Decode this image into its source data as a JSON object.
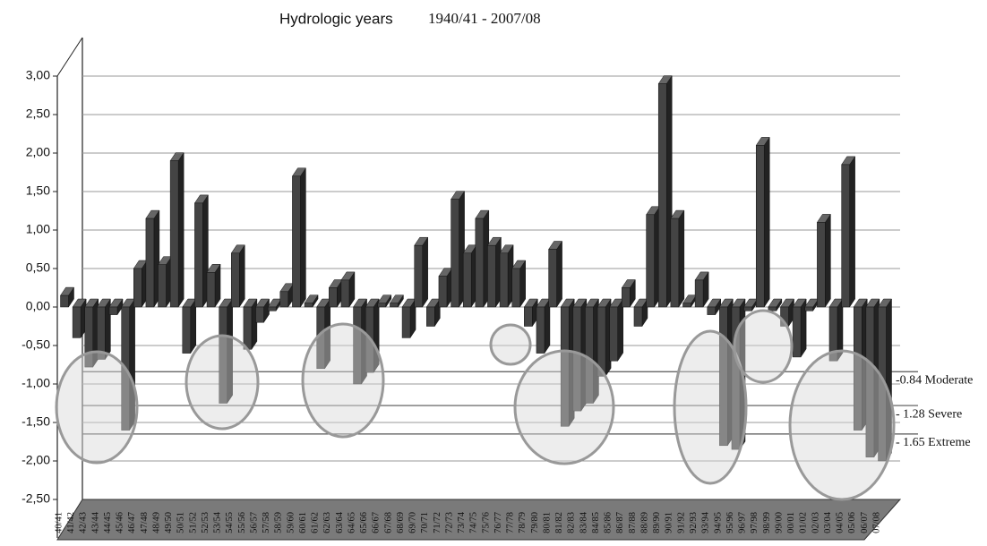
{
  "chart_data": {
    "type": "bar3d",
    "title": "Hydrologic years",
    "subtitle": "1940/41 - 2007/08",
    "categories": [
      "40/41",
      "41/42",
      "42/43",
      "43/44",
      "44/45",
      "45/46",
      "46/47",
      "47/48",
      "48/49",
      "49/50",
      "50/51",
      "51/52",
      "52/53",
      "53/54",
      "54/55",
      "55/56",
      "56/57",
      "57/58",
      "58/59",
      "59/60",
      "60/61",
      "61/62",
      "62/63",
      "63/64",
      "64/65",
      "65/66",
      "66/67",
      "67/68",
      "68/69",
      "69/70",
      "70/71",
      "71/72",
      "72/73",
      "73/74",
      "74/75",
      "75/76",
      "76/77",
      "77/78",
      "78/79",
      "79/80",
      "80/81",
      "81/82",
      "82/83",
      "83/84",
      "84/85",
      "85/86",
      "86/87",
      "87/88",
      "88/89",
      "89/90",
      "90/91",
      "91/92",
      "92/93",
      "93/94",
      "94/95",
      "95/96",
      "96/97",
      "97/98",
      "98/99",
      "99/00",
      "00/01",
      "01/02",
      "02/03",
      "03/04",
      "04/05",
      "05/06",
      "06/07",
      "07/08"
    ],
    "values": [
      0.15,
      -0.4,
      -0.78,
      -0.68,
      -0.1,
      -1.6,
      0.5,
      1.15,
      0.55,
      1.9,
      -0.6,
      1.35,
      0.45,
      -1.25,
      0.7,
      -0.55,
      -0.2,
      -0.05,
      0.2,
      1.7,
      0.05,
      -0.8,
      0.25,
      0.35,
      -1.0,
      -0.85,
      0.05,
      0.05,
      -0.4,
      0.8,
      -0.25,
      0.4,
      1.4,
      0.7,
      1.15,
      0.8,
      0.7,
      0.5,
      -0.25,
      -0.6,
      0.75,
      -1.55,
      -1.35,
      -1.25,
      -0.9,
      -0.7,
      0.25,
      -0.25,
      1.2,
      2.9,
      1.15,
      0.05,
      0.35,
      -0.1,
      -1.8,
      -1.85,
      -0.05,
      2.1,
      -0.05,
      -0.25,
      -0.65,
      -0.05,
      1.1,
      -0.7,
      1.85,
      -1.6,
      -1.95,
      -2.0
    ],
    "color": "#444444",
    "ylim": [
      -2.5,
      3.0
    ],
    "yticks": [
      {
        "value": 3.0,
        "label": "3,00"
      },
      {
        "value": 2.5,
        "label": "2,50"
      },
      {
        "value": 2.0,
        "label": "2,00"
      },
      {
        "value": 1.5,
        "label": "1,50"
      },
      {
        "value": 1.0,
        "label": "1,00"
      },
      {
        "value": 0.5,
        "label": "0,50"
      },
      {
        "value": 0.0,
        "label": "0,00"
      },
      {
        "value": -0.5,
        "label": "-0,50"
      },
      {
        "value": -1.0,
        "label": "-1,00"
      },
      {
        "value": -1.5,
        "label": "-1,50"
      },
      {
        "value": -2.0,
        "label": "-2,00"
      },
      {
        "value": -2.5,
        "label": "-2,50"
      }
    ],
    "grid": true,
    "thresholds": [
      {
        "value": -0.84,
        "label": "-0.84 Moderate"
      },
      {
        "value": -1.28,
        "label": "- 1.28 Severe"
      },
      {
        "value": -1.65,
        "label": "- 1.65 Extreme"
      }
    ]
  }
}
